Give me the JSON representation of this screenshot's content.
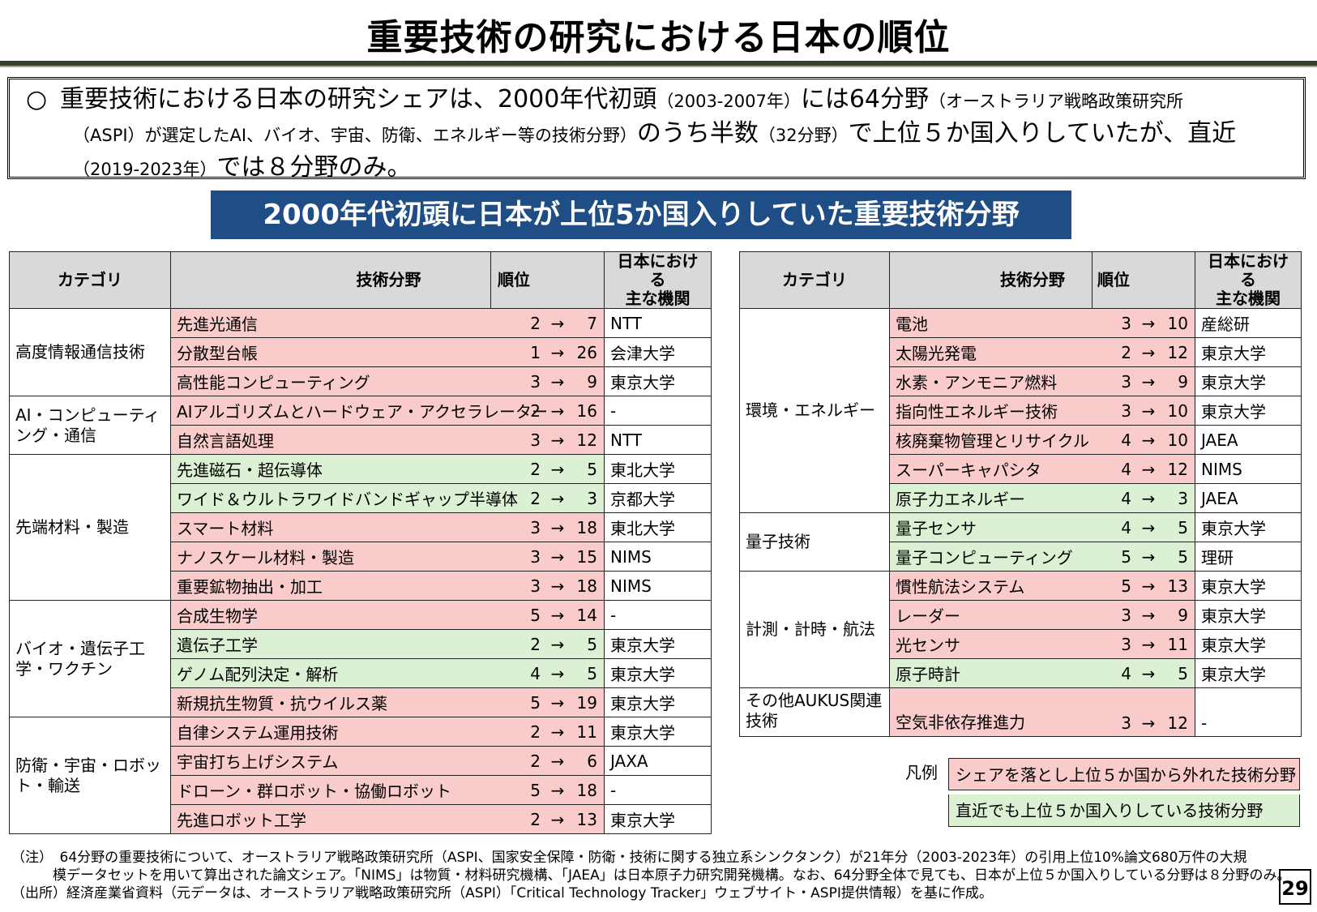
{
  "title": "重要技術の研究における日本の順位",
  "summary": {
    "bullet": "○",
    "p1": "重要技術における日本の研究シェアは、2000年代初頭",
    "p2": "（2003-2007年）",
    "p3": "には64分野",
    "p4": "（オーストラリア戦略政策研究所",
    "p5": "（ASPI）が選定したAI、バイオ、宇宙、防衛、エネルギー等の技術分野）",
    "p6": "のうち半数",
    "p7": "（32分野）",
    "p8": "で上位５か国入りしていたが、直近",
    "p9": "（2019-2023年）",
    "p10": "では８分野のみ。"
  },
  "banner": "2000年代初頭に日本が上位5か国入りしていた重要技術分野",
  "headers": {
    "category": "カテゴリ",
    "field": "技術分野",
    "rank": "順位",
    "org1": "日本における",
    "org2": "主な機関"
  },
  "arrow": "→",
  "colors": {
    "red": "#f9cbcb",
    "green": "#dcf0d3",
    "banner": "#1f4e86"
  },
  "left": [
    {
      "category": "高度情報通信技術",
      "rows": [
        {
          "field": "先進光通信",
          "from": "2",
          "to": "7",
          "org": "NTT",
          "status": "red"
        },
        {
          "field": "分散型台帳",
          "from": "1",
          "to": "26",
          "org": "会津大学",
          "status": "red"
        },
        {
          "field": "高性能コンピューティング",
          "from": "3",
          "to": "9",
          "org": "東京大学",
          "status": "red"
        }
      ]
    },
    {
      "category": "AI・コンピューティング・通信",
      "rows": [
        {
          "field": "AIアルゴリズムとハードウェア・アクセラレーター",
          "from": "2",
          "to": "16",
          "org": "-",
          "status": "red"
        },
        {
          "field": "自然言語処理",
          "from": "3",
          "to": "12",
          "org": "NTT",
          "status": "red"
        }
      ]
    },
    {
      "category": "先端材料・製造",
      "rows": [
        {
          "field": "先進磁石・超伝導体",
          "from": "2",
          "to": "5",
          "org": "東北大学",
          "status": "green"
        },
        {
          "field": "ワイド＆ウルトラワイドバンドギャップ半導体",
          "from": "2",
          "to": "3",
          "org": "京都大学",
          "status": "green"
        },
        {
          "field": "スマート材料",
          "from": "3",
          "to": "18",
          "org": "東北大学",
          "status": "red"
        },
        {
          "field": "ナノスケール材料・製造",
          "from": "3",
          "to": "15",
          "org": "NIMS",
          "status": "red"
        },
        {
          "field": "重要鉱物抽出・加工",
          "from": "3",
          "to": "18",
          "org": "NIMS",
          "status": "red"
        }
      ]
    },
    {
      "category": "バイオ・遺伝子工学・ワクチン",
      "rows": [
        {
          "field": "合成生物学",
          "from": "5",
          "to": "14",
          "org": "-",
          "status": "red"
        },
        {
          "field": "遺伝子工学",
          "from": "2",
          "to": "5",
          "org": "東京大学",
          "status": "green"
        },
        {
          "field": "ゲノム配列決定・解析",
          "from": "4",
          "to": "5",
          "org": "東京大学",
          "status": "green"
        },
        {
          "field": "新規抗生物質・抗ウイルス薬",
          "from": "5",
          "to": "19",
          "org": "東京大学",
          "status": "red"
        }
      ]
    },
    {
      "category": "防衛・宇宙・ロボット・輸送",
      "rows": [
        {
          "field": "自律システム運用技術",
          "from": "2",
          "to": "11",
          "org": "東京大学",
          "status": "red"
        },
        {
          "field": "宇宙打ち上げシステム",
          "from": "2",
          "to": "6",
          "org": "JAXA",
          "status": "red"
        },
        {
          "field": "ドローン・群ロボット・協働ロボット",
          "from": "5",
          "to": "18",
          "org": "-",
          "status": "red"
        },
        {
          "field": "先進ロボット工学",
          "from": "2",
          "to": "13",
          "org": "東京大学",
          "status": "red"
        }
      ]
    }
  ],
  "right": [
    {
      "category": "環境・エネルギー",
      "rows": [
        {
          "field": "電池",
          "from": "3",
          "to": "10",
          "org": "産総研",
          "status": "red"
        },
        {
          "field": "太陽光発電",
          "from": "2",
          "to": "12",
          "org": "東京大学",
          "status": "red"
        },
        {
          "field": "水素・アンモニア燃料",
          "from": "3",
          "to": "9",
          "org": "東京大学",
          "status": "red"
        },
        {
          "field": "指向性エネルギー技術",
          "from": "3",
          "to": "10",
          "org": "東京大学",
          "status": "red"
        },
        {
          "field": "核廃棄物管理とリサイクル",
          "from": "4",
          "to": "10",
          "org": "JAEA",
          "status": "red"
        },
        {
          "field": "スーパーキャパシタ",
          "from": "4",
          "to": "12",
          "org": "NIMS",
          "status": "red"
        },
        {
          "field": "原子力エネルギー",
          "from": "4",
          "to": "3",
          "org": "JAEA",
          "status": "green"
        }
      ]
    },
    {
      "category": "量子技術",
      "rows": [
        {
          "field": "量子センサ",
          "from": "4",
          "to": "5",
          "org": "東京大学",
          "status": "green"
        },
        {
          "field": "量子コンピューティング",
          "from": "5",
          "to": "5",
          "org": "理研",
          "status": "green"
        }
      ]
    },
    {
      "category": "計測・計時・航法",
      "rows": [
        {
          "field": "慣性航法システム",
          "from": "5",
          "to": "13",
          "org": "東京大学",
          "status": "red"
        },
        {
          "field": "レーダー",
          "from": "3",
          "to": "9",
          "org": "東京大学",
          "status": "red"
        },
        {
          "field": "光センサ",
          "from": "3",
          "to": "11",
          "org": "東京大学",
          "status": "red"
        },
        {
          "field": "原子時計",
          "from": "4",
          "to": "5",
          "org": "東京大学",
          "status": "green"
        }
      ]
    },
    {
      "category": "その他AUKUS関連技術",
      "tall": true,
      "rows": [
        {
          "field": "空気非依存推進力",
          "from": "3",
          "to": "12",
          "org": "-",
          "status": "red"
        }
      ]
    }
  ],
  "legend": {
    "label": "凡例",
    "red": "シェアを落とし上位５か国から外れた技術分野",
    "green": "直近でも上位５か国入りしている技術分野"
  },
  "notes": {
    "n1": "（注）　64分野の重要技術について、オーストラリア戦略政策研究所（ASPI、国家安全保障・防衛・技術に関する独立系シンクタンク）が21年分（2003-2023年）の引用上位10%論文680万件の大規",
    "n2": "　　　模データセットを用いて算出された論文シェア。「NIMS」は物質・材料研究機構、「JAEA」は日本原子力研究開発機構。なお、64分野全体で見ても、日本が上位５か国入りしている分野は８分野のみ。",
    "n3": "（出所）経済産業省資料（元データは、オーストラリア戦略政策研究所（ASPI）「Critical Technology Tracker」ウェブサイト・ASPI提供情報）を基に作成。"
  },
  "page_number": "29"
}
